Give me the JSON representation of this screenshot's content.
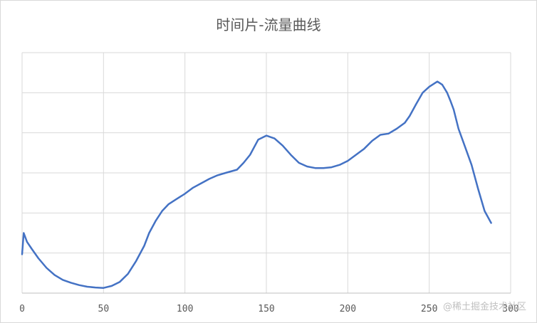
{
  "chart_data": {
    "type": "line",
    "title": "时间片-流量曲线",
    "xlabel": "",
    "ylabel": "",
    "xlim": [
      0,
      300
    ],
    "ylim": [
      0,
      6
    ],
    "x_ticks": [
      0,
      50,
      100,
      150,
      200,
      250,
      300
    ],
    "y_ticks": [
      0,
      1,
      2,
      3,
      4,
      5,
      6
    ],
    "grid": true,
    "y_tick_labels_visible": false,
    "line_color": "#4472c4",
    "series": [
      {
        "x": [
          0,
          1,
          3,
          6,
          10,
          15,
          20,
          25,
          30,
          35,
          40,
          45,
          50,
          55,
          60,
          65,
          70,
          75,
          78,
          82,
          86,
          90,
          95,
          100,
          105,
          110,
          115,
          120,
          125,
          132,
          136,
          140,
          145,
          150,
          155,
          160,
          165,
          170,
          175,
          180,
          185,
          190,
          195,
          200,
          205,
          210,
          215,
          220,
          225,
          230,
          235,
          238,
          242,
          246,
          250,
          255,
          258,
          261,
          263,
          265,
          268,
          272,
          276,
          280,
          284,
          288
        ],
        "y": [
          0.97,
          1.5,
          1.28,
          1.1,
          0.87,
          0.63,
          0.45,
          0.33,
          0.26,
          0.2,
          0.16,
          0.14,
          0.13,
          0.18,
          0.28,
          0.48,
          0.8,
          1.18,
          1.5,
          1.8,
          2.05,
          2.22,
          2.35,
          2.48,
          2.63,
          2.74,
          2.85,
          2.94,
          3.0,
          3.08,
          3.25,
          3.45,
          3.83,
          3.93,
          3.86,
          3.68,
          3.45,
          3.25,
          3.16,
          3.12,
          3.12,
          3.14,
          3.2,
          3.3,
          3.45,
          3.6,
          3.8,
          3.95,
          3.98,
          4.1,
          4.25,
          4.42,
          4.72,
          5.0,
          5.15,
          5.28,
          5.2,
          5.0,
          4.8,
          4.58,
          4.1,
          3.65,
          3.2,
          2.6,
          2.05,
          1.75
        ]
      }
    ]
  },
  "watermark": "@稀土掘金技术社区"
}
